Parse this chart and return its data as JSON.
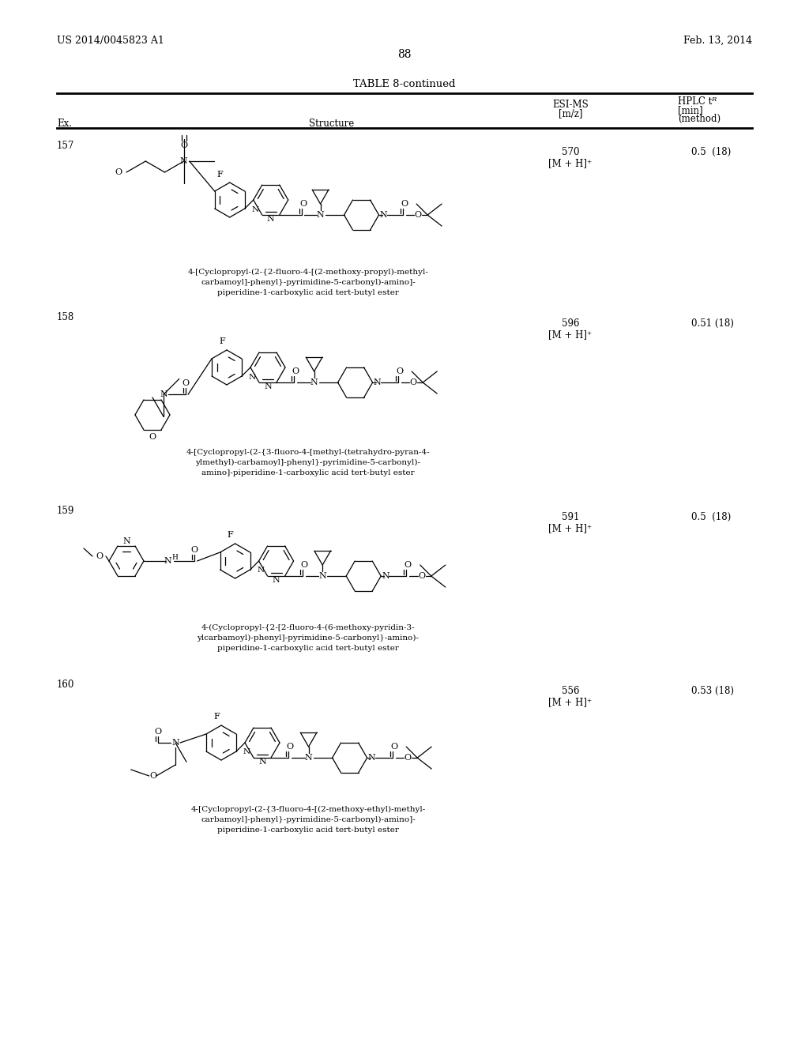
{
  "page_header_left": "US 2014/0045823 A1",
  "page_header_right": "Feb. 13, 2014",
  "page_number": "88",
  "table_title": "TABLE 8-continued",
  "rows": [
    {
      "ex": "157",
      "esi_ms_1": "570",
      "esi_ms_2": "[M + H]⁺",
      "hplc": "0.5  (18)",
      "name_lines": [
        "4-[Cyclopropyl-(2-{2-fluoro-4-[(2-methoxy-propyl)-methyl-",
        "carbamoyl]-phenyl}-pyrimidine-5-carbonyl)-amino]-",
        "piperidine-1-carboxylic acid tert-butyl ester"
      ]
    },
    {
      "ex": "158",
      "esi_ms_1": "596",
      "esi_ms_2": "[M + H]⁺",
      "hplc": "0.51 (18)",
      "name_lines": [
        "4-[Cyclopropyl-(2-{3-fluoro-4-[methyl-(tetrahydro-pyran-4-",
        "ylmethyl)-carbamoyl]-phenyl}-pyrimidine-5-carbonyl)-",
        "amino]-piperidine-1-carboxylic acid tert-butyl ester"
      ]
    },
    {
      "ex": "159",
      "esi_ms_1": "591",
      "esi_ms_2": "[M + H]⁺",
      "hplc": "0.5  (18)",
      "name_lines": [
        "4-(Cyclopropyl-{2-[2-fluoro-4-(6-methoxy-pyridin-3-",
        "ylcarbamoyl)-phenyl]-pyrimidine-5-carbonyl}-amino)-",
        "piperidine-1-carboxylic acid tert-butyl ester"
      ]
    },
    {
      "ex": "160",
      "esi_ms_1": "556",
      "esi_ms_2": "[M + H]⁺",
      "hplc": "0.53 (18)",
      "name_lines": [
        "4-[Cyclopropyl-(2-{3-fluoro-4-[(2-methoxy-ethyl)-methyl-",
        "carbamoyl]-phenyl}-pyrimidine-5-carbonyl)-amino]-",
        "piperidine-1-carboxylic acid tert-butyl ester"
      ]
    }
  ],
  "bg_color": "#ffffff",
  "text_color": "#000000"
}
